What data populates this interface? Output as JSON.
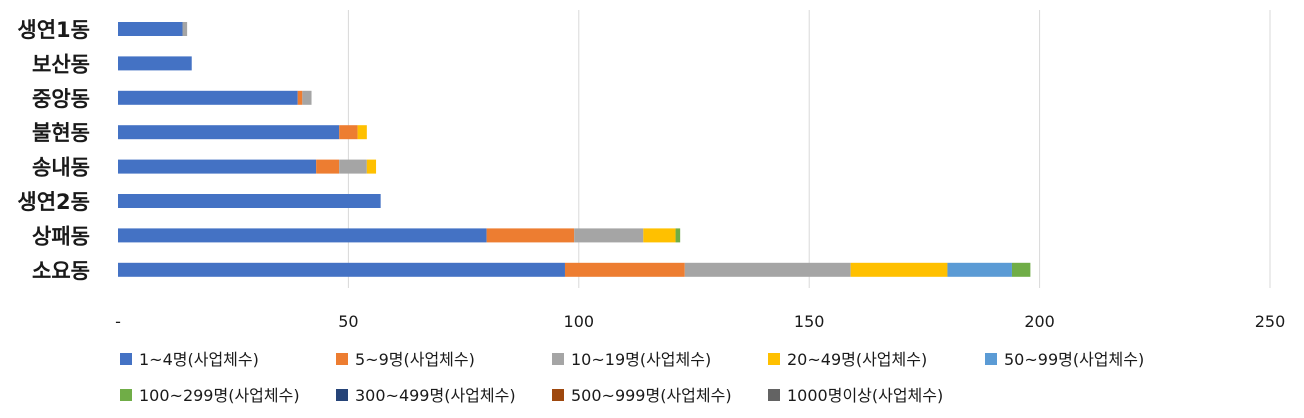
{
  "chart_data": {
    "type": "bar",
    "orientation": "horizontal",
    "stacked": true,
    "categories": [
      "생연1동",
      "보산동",
      "중앙동",
      "불현동",
      "송내동",
      "생연2동",
      "상패동",
      "소요동"
    ],
    "series": [
      {
        "name": "1~4명(사업체수)",
        "color": "#4472C4",
        "values": [
          14,
          16,
          39,
          48,
          43,
          57,
          80,
          97
        ]
      },
      {
        "name": "5~9명(사업체수)",
        "color": "#ED7D31",
        "values": [
          0,
          0,
          1,
          4,
          5,
          0,
          19,
          26
        ]
      },
      {
        "name": "10~19명(사업체수)",
        "color": "#A5A5A5",
        "values": [
          1,
          0,
          2,
          0,
          6,
          0,
          15,
          36
        ]
      },
      {
        "name": "20~49명(사업체수)",
        "color": "#FFC000",
        "values": [
          0,
          0,
          0,
          2,
          2,
          0,
          7,
          21
        ]
      },
      {
        "name": "50~99명(사업체수)",
        "color": "#5B9BD5",
        "values": [
          0,
          0,
          0,
          0,
          0,
          0,
          0,
          14
        ]
      },
      {
        "name": "100~299명(사업체수)",
        "color": "#70AD47",
        "values": [
          0,
          0,
          0,
          0,
          0,
          0,
          1,
          4
        ]
      },
      {
        "name": "300~499명(사업체수)",
        "color": "#264478",
        "values": [
          0,
          0,
          0,
          0,
          0,
          0,
          0,
          0
        ]
      },
      {
        "name": "500~999명(사업체수)",
        "color": "#9E480E",
        "values": [
          0,
          0,
          0,
          0,
          0,
          0,
          0,
          0
        ]
      },
      {
        "name": "1000명이상(사업체수)",
        "color": "#636363",
        "values": [
          0,
          0,
          0,
          0,
          0,
          0,
          0,
          0
        ]
      }
    ],
    "x_ticks": [
      "-",
      "50",
      "100",
      "150",
      "200",
      "250"
    ],
    "xlim": [
      0,
      250
    ],
    "title": "",
    "xlabel": "",
    "ylabel": "",
    "grid": "vertical",
    "legend_position": "bottom"
  }
}
